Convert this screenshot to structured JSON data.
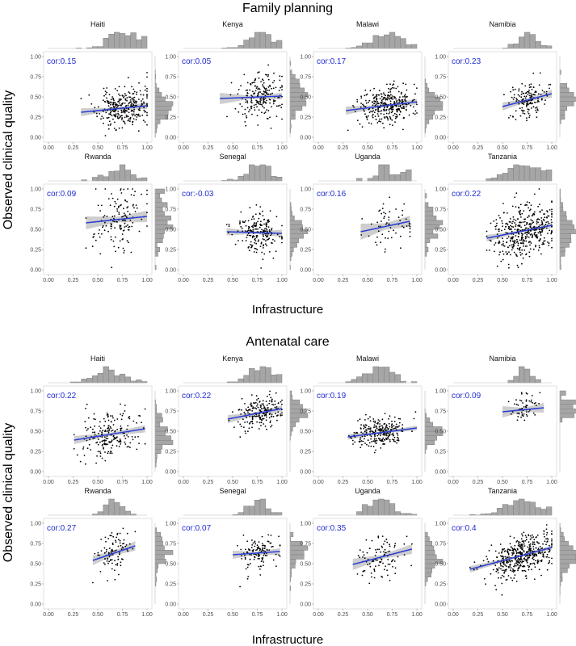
{
  "figure": {
    "x_axis_label": "Infrastructure",
    "y_axis_label": "Observed clinical quality"
  },
  "colors": {
    "regression_line": "#2b3fd6",
    "confidence_band": "#bdbdbd",
    "histogram": "#a6a6a6",
    "points": "#000000",
    "cor_text": "#1f2bd1"
  },
  "chart_data": [
    {
      "type": "scatter",
      "title": "Family planning",
      "xlabel": "Infrastructure",
      "ylabel": "Observed clinical quality",
      "xlim": [
        0,
        1
      ],
      "ylim": [
        0,
        1
      ],
      "x_ticks": [
        "0.00",
        "0.25",
        "0.50",
        "0.75",
        "1.00"
      ],
      "y_ticks": [
        "0.00",
        "0.25",
        "0.50",
        "0.75",
        "1.00"
      ],
      "grid": false,
      "marginal_histograms": true,
      "regression": "linear with confidence band",
      "panels": [
        {
          "name": "Haiti",
          "cor_label": "cor:0.15",
          "cor": 0.15,
          "n": 300,
          "x_range": [
            0.33,
            1.0
          ],
          "x_mean": 0.76,
          "x_sd": 0.13,
          "y_mean": 0.36,
          "y_sd": 0.12,
          "line": [
            [
              0.33,
              0.31
            ],
            [
              1.0,
              0.39
            ]
          ],
          "ci_halfwidth": [
            0.05,
            0.015,
            0.04
          ]
        },
        {
          "name": "Kenya",
          "cor_label": "cor:0.05",
          "cor": 0.05,
          "n": 200,
          "x_range": [
            0.37,
            1.0
          ],
          "x_mean": 0.8,
          "x_sd": 0.12,
          "y_mean": 0.49,
          "y_sd": 0.15,
          "line": [
            [
              0.37,
              0.48
            ],
            [
              1.0,
              0.51
            ]
          ],
          "ci_halfwidth": [
            0.07,
            0.02,
            0.04
          ]
        },
        {
          "name": "Malawi",
          "cor_label": "cor:0.17",
          "cor": 0.17,
          "n": 320,
          "x_range": [
            0.28,
            1.0
          ],
          "x_mean": 0.7,
          "x_sd": 0.15,
          "y_mean": 0.4,
          "y_sd": 0.12,
          "line": [
            [
              0.28,
              0.33
            ],
            [
              1.0,
              0.44
            ]
          ],
          "ci_halfwidth": [
            0.05,
            0.015,
            0.035
          ]
        },
        {
          "name": "Namibia",
          "cor_label": "cor:0.23",
          "cor": 0.23,
          "n": 150,
          "x_range": [
            0.5,
            1.0
          ],
          "x_mean": 0.77,
          "x_sd": 0.1,
          "y_mean": 0.46,
          "y_sd": 0.11,
          "line": [
            [
              0.5,
              0.38
            ],
            [
              1.0,
              0.54
            ]
          ],
          "ci_halfwidth": [
            0.05,
            0.02,
            0.05
          ]
        },
        {
          "name": "Rwanda",
          "cor_label": "cor:0.09",
          "cor": 0.09,
          "n": 140,
          "x_range": [
            0.38,
            1.0
          ],
          "x_mean": 0.7,
          "x_sd": 0.13,
          "y_mean": 0.6,
          "y_sd": 0.2,
          "line": [
            [
              0.38,
              0.58
            ],
            [
              1.0,
              0.66
            ]
          ],
          "ci_halfwidth": [
            0.08,
            0.035,
            0.07
          ]
        },
        {
          "name": "Senegal",
          "cor_label": "cor:-0.03",
          "cor": -0.03,
          "n": 200,
          "x_range": [
            0.44,
            1.0
          ],
          "x_mean": 0.77,
          "x_sd": 0.12,
          "y_mean": 0.46,
          "y_sd": 0.12,
          "line": [
            [
              0.44,
              0.47
            ],
            [
              1.0,
              0.45
            ]
          ],
          "ci_halfwidth": [
            0.045,
            0.015,
            0.045
          ]
        },
        {
          "name": "Uganda",
          "cor_label": "cor:0.16",
          "cor": 0.16,
          "n": 60,
          "x_range": [
            0.43,
            0.93
          ],
          "x_mean": 0.72,
          "x_sd": 0.12,
          "y_mean": 0.56,
          "y_sd": 0.16,
          "line": [
            [
              0.43,
              0.47
            ],
            [
              0.93,
              0.6
            ]
          ],
          "ci_halfwidth": [
            0.1,
            0.04,
            0.07
          ]
        },
        {
          "name": "Tanzania",
          "cor_label": "cor:0.22",
          "cor": 0.22,
          "n": 420,
          "x_range": [
            0.34,
            1.0
          ],
          "x_mean": 0.73,
          "x_sd": 0.16,
          "y_mean": 0.49,
          "y_sd": 0.15,
          "line": [
            [
              0.34,
              0.39
            ],
            [
              1.0,
              0.55
            ]
          ],
          "ci_halfwidth": [
            0.04,
            0.015,
            0.035
          ]
        }
      ]
    },
    {
      "type": "scatter",
      "title": "Antenatal care",
      "xlabel": "Infrastructure",
      "ylabel": "Observed clinical quality",
      "xlim": [
        0,
        1
      ],
      "ylim": [
        0,
        1
      ],
      "x_ticks": [
        "0.00",
        "0.25",
        "0.50",
        "0.75",
        "1.00"
      ],
      "y_ticks": [
        "0.00",
        "0.25",
        "0.50",
        "0.75",
        "1.00"
      ],
      "grid": false,
      "marginal_histograms": true,
      "regression": "linear with confidence band",
      "panels": [
        {
          "name": "Haiti",
          "cor_label": "cor:0.22",
          "cor": 0.22,
          "n": 200,
          "x_range": [
            0.26,
            0.98
          ],
          "x_mean": 0.62,
          "x_sd": 0.15,
          "y_mean": 0.47,
          "y_sd": 0.15,
          "line": [
            [
              0.26,
              0.39
            ],
            [
              0.98,
              0.53
            ]
          ],
          "ci_halfwidth": [
            0.05,
            0.02,
            0.045
          ]
        },
        {
          "name": "Kenya",
          "cor_label": "cor:0.22",
          "cor": 0.22,
          "n": 200,
          "x_range": [
            0.45,
            1.0
          ],
          "x_mean": 0.78,
          "x_sd": 0.12,
          "y_mean": 0.73,
          "y_sd": 0.1,
          "line": [
            [
              0.45,
              0.65
            ],
            [
              1.0,
              0.78
            ]
          ],
          "ci_halfwidth": [
            0.05,
            0.02,
            0.04
          ]
        },
        {
          "name": "Malawi",
          "cor_label": "cor:0.19",
          "cor": 0.19,
          "n": 260,
          "x_range": [
            0.3,
            1.0
          ],
          "x_mean": 0.62,
          "x_sd": 0.14,
          "y_mean": 0.48,
          "y_sd": 0.09,
          "line": [
            [
              0.3,
              0.43
            ],
            [
              1.0,
              0.54
            ]
          ],
          "ci_halfwidth": [
            0.035,
            0.012,
            0.03
          ]
        },
        {
          "name": "Namibia",
          "cor_label": "cor:0.09",
          "cor": 0.09,
          "n": 60,
          "x_range": [
            0.5,
            0.92
          ],
          "x_mean": 0.74,
          "x_sd": 0.08,
          "y_mean": 0.76,
          "y_sd": 0.09,
          "line": [
            [
              0.5,
              0.74
            ],
            [
              0.92,
              0.79
            ]
          ],
          "ci_halfwidth": [
            0.07,
            0.025,
            0.06
          ]
        },
        {
          "name": "Rwanda",
          "cor_label": "cor:0.27",
          "cor": 0.27,
          "n": 100,
          "x_range": [
            0.45,
            0.88
          ],
          "x_mean": 0.66,
          "x_sd": 0.09,
          "y_mean": 0.62,
          "y_sd": 0.12,
          "line": [
            [
              0.45,
              0.54
            ],
            [
              0.88,
              0.72
            ]
          ],
          "ci_halfwidth": [
            0.06,
            0.025,
            0.06
          ]
        },
        {
          "name": "Senegal",
          "cor_label": "cor:0.07",
          "cor": 0.07,
          "n": 120,
          "x_range": [
            0.5,
            0.98
          ],
          "x_mean": 0.76,
          "x_sd": 0.1,
          "y_mean": 0.63,
          "y_sd": 0.1,
          "line": [
            [
              0.5,
              0.61
            ],
            [
              0.98,
              0.65
            ]
          ],
          "ci_halfwidth": [
            0.05,
            0.02,
            0.04
          ]
        },
        {
          "name": "Uganda",
          "cor_label": "cor:0.35",
          "cor": 0.35,
          "n": 100,
          "x_range": [
            0.35,
            0.95
          ],
          "x_mean": 0.65,
          "x_sd": 0.13,
          "y_mean": 0.6,
          "y_sd": 0.13,
          "line": [
            [
              0.35,
              0.49
            ],
            [
              0.95,
              0.68
            ]
          ],
          "ci_halfwidth": [
            0.07,
            0.025,
            0.06
          ]
        },
        {
          "name": "Tanzania",
          "cor_label": "cor:0.4",
          "cor": 0.4,
          "n": 450,
          "x_range": [
            0.17,
            1.0
          ],
          "x_mean": 0.7,
          "x_sd": 0.17,
          "y_mean": 0.62,
          "y_sd": 0.13,
          "line": [
            [
              0.17,
              0.43
            ],
            [
              1.0,
              0.7
            ]
          ],
          "ci_halfwidth": [
            0.04,
            0.012,
            0.025
          ]
        }
      ]
    }
  ]
}
